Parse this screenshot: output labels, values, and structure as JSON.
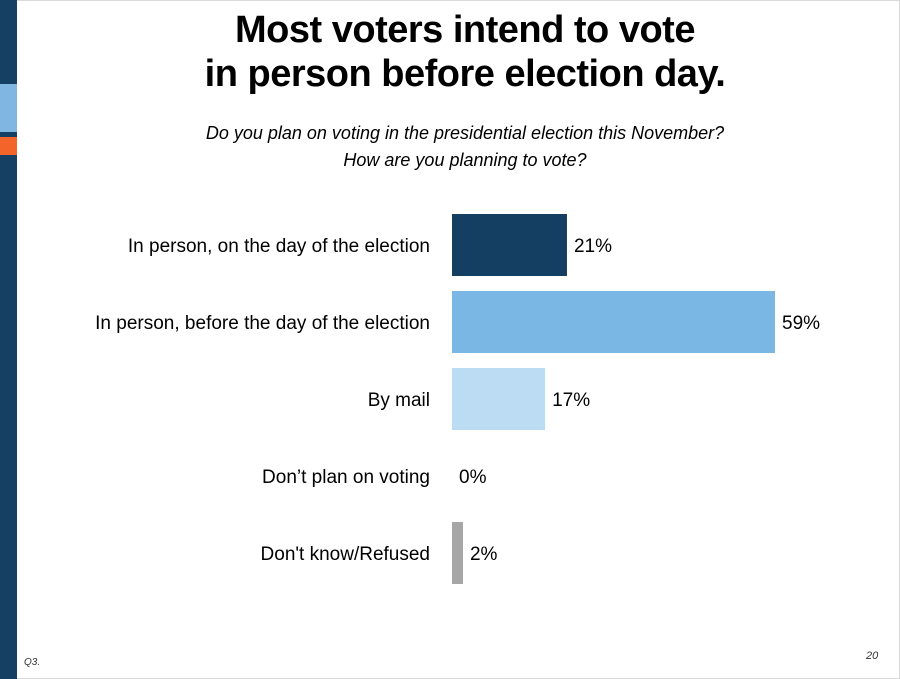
{
  "slide": {
    "title_lines": [
      "Most voters intend to vote",
      "in person before election day."
    ],
    "subtitle_lines": [
      "Do you plan on voting in the presidential election this November?",
      "How are you planning to vote?"
    ],
    "footer_note": "Q3.",
    "page_number": "20"
  },
  "chart_data": {
    "type": "bar",
    "orientation": "horizontal",
    "categories": [
      "In person, on the day of the election",
      "In person, before the day of the election",
      "By mail",
      "Don’t plan on voting",
      "Don't know/Refused"
    ],
    "values": [
      21,
      59,
      17,
      0,
      2
    ],
    "value_labels": [
      "21%",
      "59%",
      "17%",
      "0%",
      "2%"
    ],
    "colors": [
      "#143f62",
      "#7bb7e5",
      "#bcdcf4",
      "#bcdcf4",
      "#a6a6a6"
    ],
    "title": "",
    "xlabel": "",
    "ylabel": "",
    "xlim": [
      0,
      59
    ],
    "grid": false
  }
}
